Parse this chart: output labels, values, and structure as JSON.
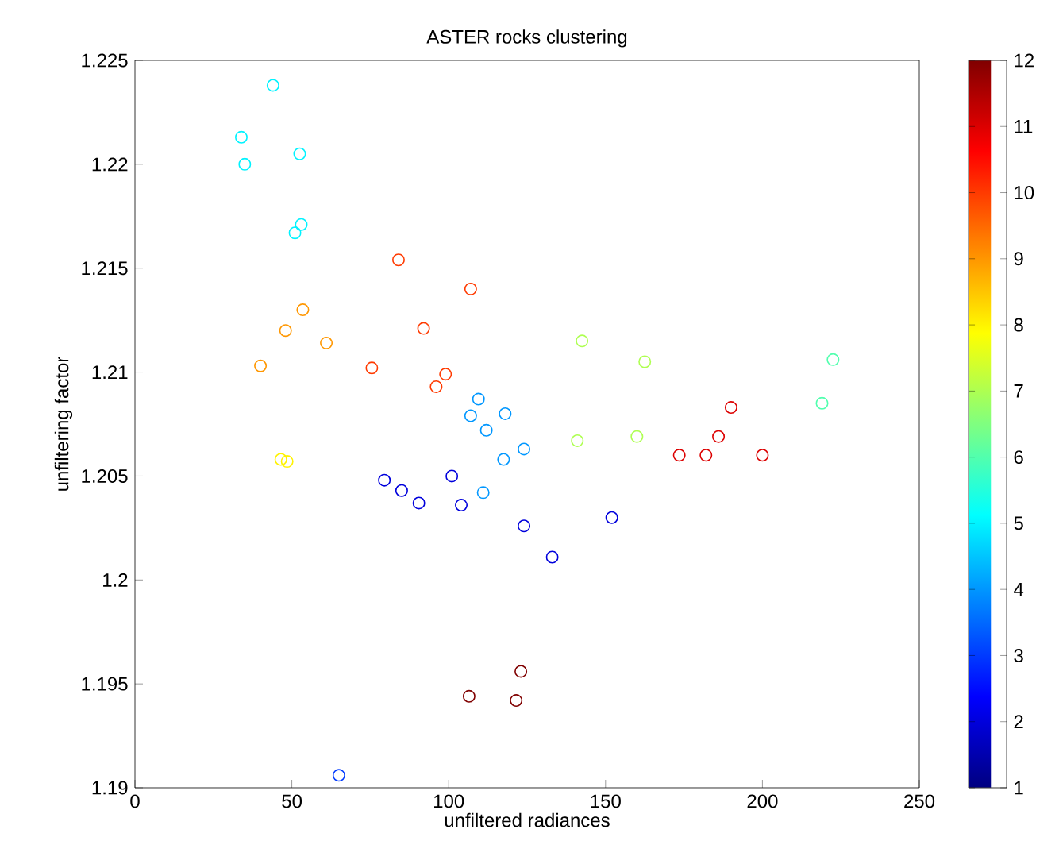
{
  "chart_data": {
    "type": "scatter",
    "title": "ASTER rocks clustering",
    "xlabel": "unfiltered radiances",
    "ylabel": "unfiltering factor",
    "x": [
      33.9,
      35,
      44,
      52.5,
      53,
      51,
      40,
      48,
      53.5,
      61,
      75.5,
      84,
      92,
      96,
      99,
      107,
      107,
      109.5,
      112,
      117.5,
      118,
      124,
      111,
      46.5,
      48.5,
      79.5,
      85,
      90.5,
      101,
      104,
      124,
      133,
      152,
      65,
      106.5,
      121.5,
      123,
      142.5,
      162.5,
      141,
      160,
      219,
      222.5,
      173.5,
      182,
      186,
      190,
      200
    ],
    "values": [
      1.2213,
      1.22,
      1.2238,
      1.2205,
      1.2171,
      1.2167,
      1.2103,
      1.212,
      1.213,
      1.2114,
      1.2102,
      1.2154,
      1.2121,
      1.2093,
      1.2099,
      1.214,
      1.2079,
      1.2087,
      1.2072,
      1.2058,
      1.208,
      1.2063,
      1.2042,
      1.2058,
      1.2057,
      1.2048,
      1.2043,
      1.2037,
      1.205,
      1.2036,
      1.2026,
      1.2011,
      1.203,
      1.1906,
      1.1944,
      1.1942,
      1.1956,
      1.2115,
      1.2105,
      1.2067,
      1.2069,
      1.2085,
      1.2106,
      1.206,
      1.206,
      1.2069,
      1.2083,
      1.206
    ],
    "cvalues": [
      5,
      5,
      5,
      5,
      5,
      5,
      9,
      9,
      9,
      9,
      10,
      10,
      10,
      10,
      10,
      10,
      4,
      4,
      4,
      4,
      4,
      4,
      4,
      8,
      8,
      2,
      2,
      2,
      2,
      2,
      2,
      2,
      2,
      3,
      12,
      12,
      12,
      7,
      7,
      7,
      7,
      6,
      6,
      11,
      11,
      11,
      11,
      11
    ],
    "xlim": [
      0,
      250
    ],
    "ylim": [
      1.19,
      1.225
    ],
    "xticks": [
      0,
      50,
      100,
      150,
      200,
      250
    ],
    "yticks": [
      1.19,
      1.195,
      1.2,
      1.205,
      1.21,
      1.215,
      1.22,
      1.225
    ],
    "clim": [
      1,
      12
    ],
    "cticks": [
      1,
      2,
      3,
      4,
      5,
      6,
      7,
      8,
      9,
      10,
      11,
      12
    ],
    "marker": "circle",
    "grid": false
  }
}
